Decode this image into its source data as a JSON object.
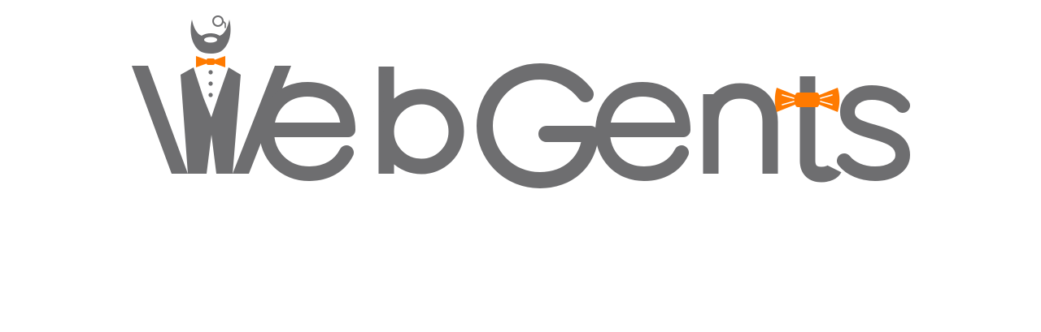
{
  "logo": {
    "text": "Web Gents",
    "colors": {
      "text": "#6e6e70",
      "accent": "#ff7a00",
      "background": "#ffffff"
    },
    "icons": [
      "gentleman-head-icon",
      "monocle-icon",
      "bow-tie-icon",
      "tuxedo-collar-icon"
    ]
  }
}
